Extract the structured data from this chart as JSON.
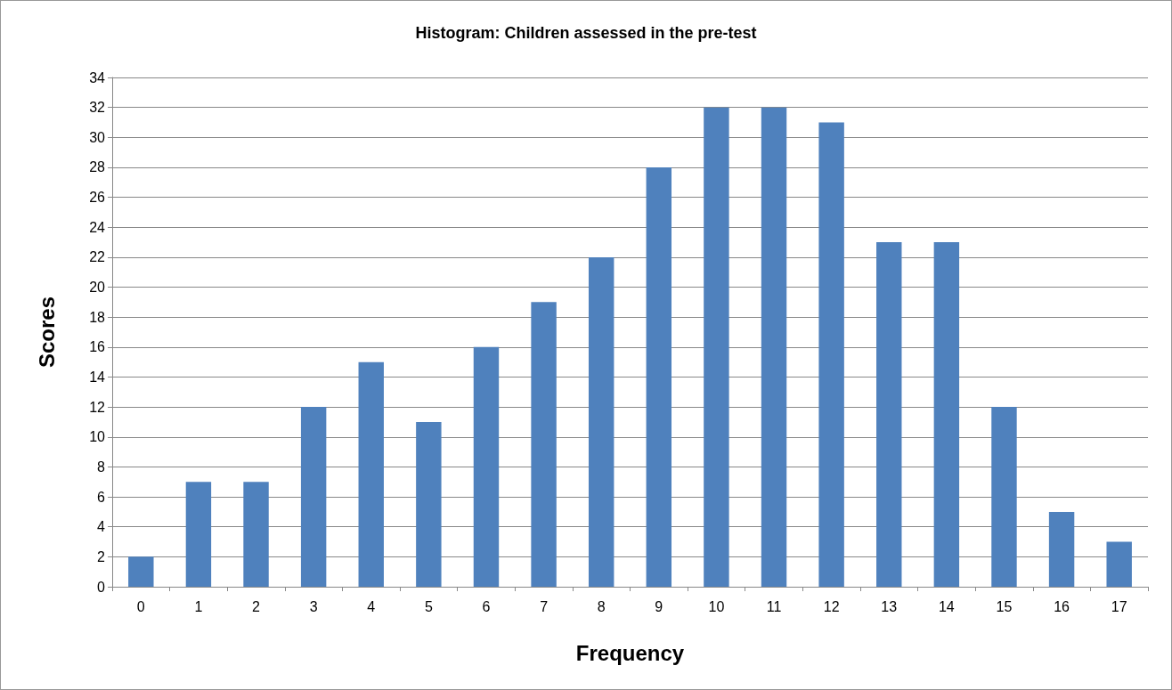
{
  "chart_data": {
    "type": "bar",
    "title": "Histogram: Children assessed in the pre-test",
    "xlabel": "Frequency",
    "ylabel": "Scores",
    "categories": [
      "0",
      "1",
      "2",
      "3",
      "4",
      "5",
      "6",
      "7",
      "8",
      "9",
      "10",
      "11",
      "12",
      "13",
      "14",
      "15",
      "16",
      "17"
    ],
    "values": [
      2,
      7,
      7,
      12,
      15,
      11,
      16,
      19,
      22,
      28,
      32,
      32,
      31,
      23,
      23,
      12,
      5,
      3
    ],
    "color": "#4f81bd",
    "ylim": [
      0,
      34
    ],
    "yticks": [
      0,
      2,
      4,
      6,
      8,
      10,
      12,
      14,
      16,
      18,
      20,
      22,
      24,
      26,
      28,
      30,
      32,
      34
    ],
    "grid": "y"
  }
}
